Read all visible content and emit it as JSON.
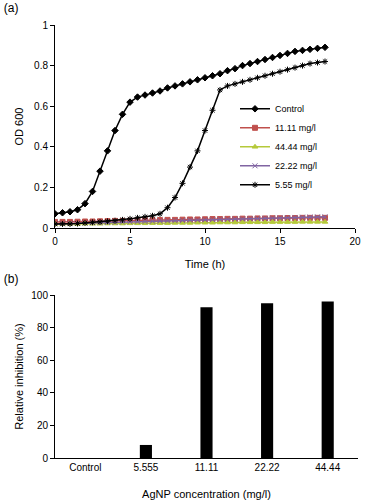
{
  "chart_data": [
    {
      "type": "line",
      "title": "(a)",
      "x_label": "Time (h)",
      "y_label": "OD 600",
      "x": [
        0,
        0.5,
        1,
        1.5,
        2,
        2.5,
        3,
        3.5,
        4,
        4.5,
        5,
        5.5,
        6,
        6.5,
        7,
        7.5,
        8,
        8.5,
        9,
        9.5,
        10,
        10.5,
        11,
        11.5,
        12,
        12.5,
        13,
        13.5,
        14,
        14.5,
        15,
        15.5,
        16,
        16.5,
        17,
        17.5,
        18
      ],
      "series": [
        {
          "name": "Control",
          "color": "#000000",
          "marker": "diamond",
          "values": [
            0.07,
            0.075,
            0.08,
            0.09,
            0.12,
            0.18,
            0.28,
            0.38,
            0.48,
            0.56,
            0.62,
            0.645,
            0.655,
            0.665,
            0.675,
            0.69,
            0.7,
            0.71,
            0.72,
            0.73,
            0.74,
            0.75,
            0.76,
            0.775,
            0.785,
            0.8,
            0.81,
            0.82,
            0.83,
            0.84,
            0.85,
            0.86,
            0.87,
            0.875,
            0.88,
            0.885,
            0.89
          ]
        },
        {
          "name": "11.11 mg/l",
          "color": "#c0504d",
          "marker": "square",
          "values": [
            0.03,
            0.03,
            0.03,
            0.031,
            0.032,
            0.032,
            0.033,
            0.034,
            0.035,
            0.035,
            0.036,
            0.037,
            0.038,
            0.038,
            0.039,
            0.04,
            0.04,
            0.041,
            0.042,
            0.042,
            0.043,
            0.044,
            0.044,
            0.045,
            0.045,
            0.046,
            0.046,
            0.047,
            0.047,
            0.048,
            0.048,
            0.049,
            0.049,
            0.05,
            0.05,
            0.05,
            0.05
          ]
        },
        {
          "name": "44.44 mg/l",
          "color": "#b5c93a",
          "marker": "triangle",
          "values": [
            0.02,
            0.02,
            0.02,
            0.02,
            0.021,
            0.021,
            0.021,
            0.022,
            0.022,
            0.022,
            0.023,
            0.023,
            0.023,
            0.024,
            0.024,
            0.024,
            0.025,
            0.025,
            0.025,
            0.026,
            0.026,
            0.026,
            0.027,
            0.027,
            0.027,
            0.028,
            0.028,
            0.028,
            0.028,
            0.029,
            0.029,
            0.029,
            0.029,
            0.03,
            0.03,
            0.03,
            0.03
          ]
        },
        {
          "name": "22.22 mg/l",
          "color": "#8064a2",
          "marker": "x",
          "values": [
            0.02,
            0.021,
            0.022,
            0.023,
            0.024,
            0.025,
            0.026,
            0.027,
            0.028,
            0.029,
            0.03,
            0.031,
            0.032,
            0.033,
            0.034,
            0.035,
            0.036,
            0.037,
            0.038,
            0.039,
            0.04,
            0.041,
            0.042,
            0.043,
            0.044,
            0.045,
            0.046,
            0.047,
            0.048,
            0.049,
            0.05,
            0.051,
            0.052,
            0.053,
            0.054,
            0.055,
            0.055
          ]
        },
        {
          "name": "5.55 mg/l",
          "color": "#000000",
          "marker": "star",
          "values": [
            0.02,
            0.02,
            0.02,
            0.022,
            0.025,
            0.028,
            0.03,
            0.033,
            0.036,
            0.04,
            0.045,
            0.05,
            0.055,
            0.06,
            0.07,
            0.1,
            0.15,
            0.22,
            0.3,
            0.38,
            0.48,
            0.58,
            0.68,
            0.7,
            0.71,
            0.72,
            0.73,
            0.74,
            0.75,
            0.76,
            0.77,
            0.78,
            0.79,
            0.8,
            0.81,
            0.815,
            0.82
          ]
        }
      ],
      "xlim": [
        0,
        20
      ],
      "xticks": [
        0,
        5,
        10,
        15,
        20
      ],
      "ylim": [
        0,
        1
      ],
      "yticks": [
        0,
        0.2,
        0.4,
        0.6,
        0.8,
        1
      ],
      "legend": "right",
      "grid": false
    },
    {
      "type": "bar",
      "title": "(b)",
      "x_label": "AgNP concentration (mg/l)",
      "y_label": "Relative inhibition (%)",
      "categories": [
        "Control",
        "5.555",
        "11.11",
        "22.22",
        "44.44"
      ],
      "values": [
        0,
        8,
        92.5,
        95,
        96
      ],
      "color": "#000000",
      "ylim": [
        0,
        100
      ],
      "yticks": [
        0,
        20,
        40,
        60,
        80,
        100
      ],
      "grid": false
    }
  ]
}
